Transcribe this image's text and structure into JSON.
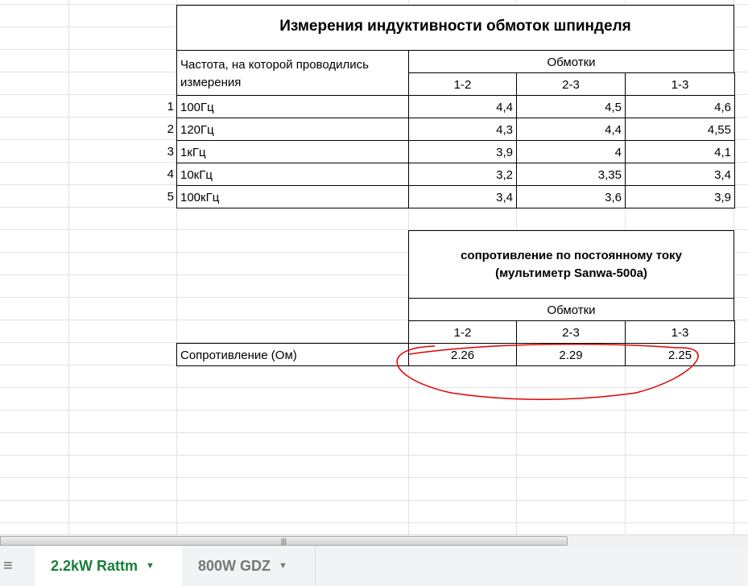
{
  "table1": {
    "title": "Измерения индуктивности обмоток шпинделя",
    "freq_header": "Частота, на которой проводились измерения",
    "windings_header": "Обмотки",
    "cols": [
      "1-2",
      "2-3",
      "1-3"
    ],
    "rows": [
      {
        "n": "1",
        "freq": "100Гц",
        "v": [
          "4,4",
          "4,5",
          "4,6"
        ]
      },
      {
        "n": "2",
        "freq": "120Гц",
        "v": [
          "4,3",
          "4,4",
          "4,55"
        ]
      },
      {
        "n": "3",
        "freq": "1кГц",
        "v": [
          "3,9",
          "4",
          "4,1"
        ]
      },
      {
        "n": "4",
        "freq": "10кГц",
        "v": [
          "3,2",
          "3,35",
          "3,4"
        ]
      },
      {
        "n": "5",
        "freq": "100кГц",
        "v": [
          "3,4",
          "3,6",
          "3,9"
        ]
      }
    ]
  },
  "table2": {
    "title": "сопротивление по постоянному току (мультиметр Sanwa-500a)",
    "windings_header": "Обмотки",
    "cols": [
      "1-2",
      "2-3",
      "1-3"
    ],
    "row_label": "Сопротивление (Ом)",
    "values": [
      "2.26",
      "2.29",
      "2.25"
    ]
  },
  "annotation_color": "#e00000",
  "sheets": {
    "active": "2.2kW Rattm",
    "other": "800W GDZ",
    "active_color": "#188038",
    "menu_icon": "hamburger-icon"
  },
  "scrollbar_grip": "|||"
}
